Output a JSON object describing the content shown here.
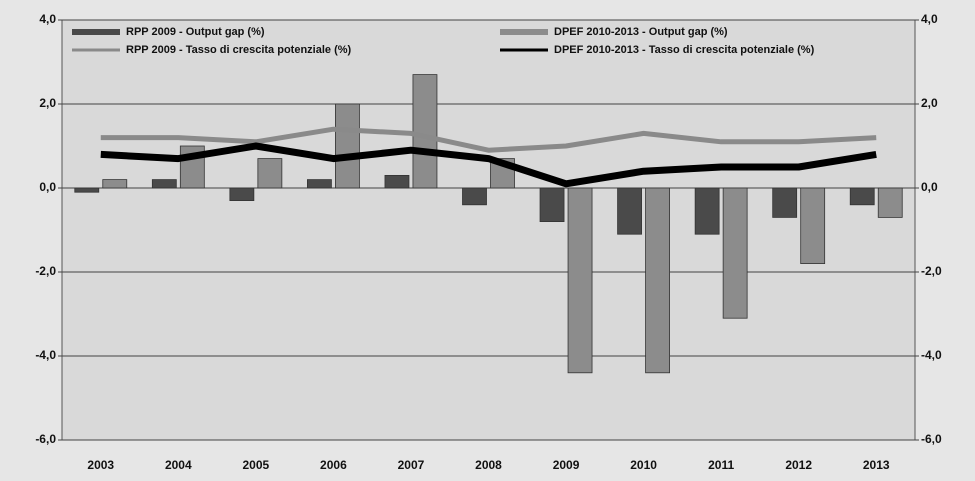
{
  "chart_data": {
    "type": "bar",
    "categories": [
      "2003",
      "2004",
      "2005",
      "2006",
      "2007",
      "2008",
      "2009",
      "2010",
      "2011",
      "2012",
      "2013"
    ],
    "series": [
      {
        "name": "RPP 2009 - Output gap (%)",
        "type": "bar",
        "color": "#4a4a4a",
        "values": [
          -0.1,
          0.2,
          -0.3,
          0.2,
          0.3,
          -0.4,
          -0.8,
          -1.1,
          -1.1,
          -0.7,
          -0.4
        ]
      },
      {
        "name": "DPEF 2010-2013 - Output gap (%)",
        "type": "bar",
        "color": "#8c8c8c",
        "values": [
          0.2,
          1.0,
          0.7,
          2.0,
          2.7,
          0.7,
          -4.4,
          -4.4,
          -3.1,
          -1.8,
          -0.7
        ]
      },
      {
        "name": "RPP 2009 - Tasso di crescita potenziale (%)",
        "type": "line",
        "color": "#8a8a8a",
        "values": [
          1.2,
          1.2,
          1.1,
          1.4,
          1.3,
          0.9,
          1.0,
          1.3,
          1.1,
          1.1,
          1.2
        ]
      },
      {
        "name": "DPEF 2010-2013 - Tasso di crescita potenziale (%)",
        "type": "line",
        "color": "#000000",
        "values": [
          0.8,
          0.7,
          1.0,
          0.7,
          0.9,
          0.7,
          0.1,
          0.4,
          0.5,
          0.5,
          0.8
        ]
      }
    ],
    "ylim": [
      -6,
      4
    ],
    "yticks": [
      {
        "value": -6,
        "label": "-6,0"
      },
      {
        "value": -4,
        "label": "-4,0"
      },
      {
        "value": -2,
        "label": "-2,0"
      },
      {
        "value": 0,
        "label": "0,0"
      },
      {
        "value": 2,
        "label": "2,0"
      },
      {
        "value": 4,
        "label": "4,0"
      }
    ],
    "y2lim": [
      -6,
      4
    ],
    "y2ticks": [
      {
        "value": -6,
        "label": "-6,0"
      },
      {
        "value": -4,
        "label": "-4,0"
      },
      {
        "value": -2,
        "label": "-2,0"
      },
      {
        "value": 0,
        "label": "0,0"
      },
      {
        "value": 2,
        "label": "2,0"
      },
      {
        "value": 4,
        "label": "4,0"
      }
    ],
    "grid": true
  }
}
